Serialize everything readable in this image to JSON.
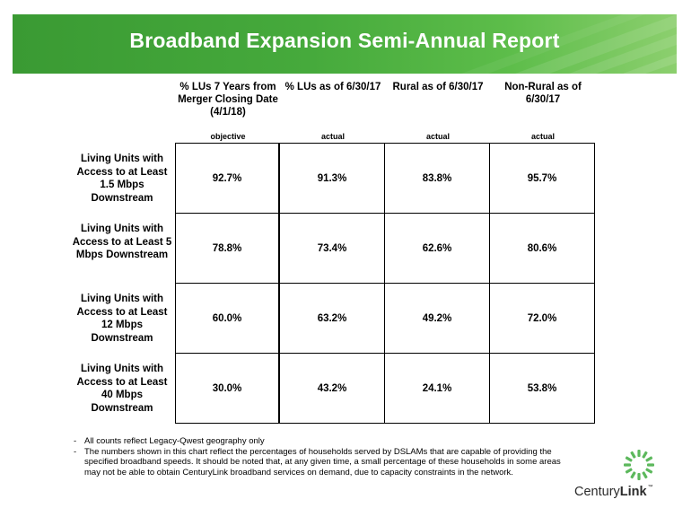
{
  "title": "Broadband Expansion Semi-Annual Report",
  "colors": {
    "banner_green": "#46aa3c",
    "logo_green": "#5cb85c"
  },
  "columns": [
    {
      "header": "% LUs 7 Years from Merger  Closing Date (4/1/18)",
      "sub": "objective"
    },
    {
      "header": "% LUs as of 6/30/17",
      "sub": "actual"
    },
    {
      "header": "Rural as of 6/30/17",
      "sub": "actual"
    },
    {
      "header": "Non-Rural as of 6/30/17",
      "sub": "actual"
    }
  ],
  "rows": [
    {
      "label": "Living Units with Access to at Least 1.5 Mbps Downstream",
      "values": [
        "92.7%",
        "91.3%",
        "83.8%",
        "95.7%"
      ]
    },
    {
      "label": "Living Units with Access to at Least 5 Mbps Downstream",
      "values": [
        "78.8%",
        "73.4%",
        "62.6%",
        "80.6%"
      ]
    },
    {
      "label": "Living Units with Access to at Least 12 Mbps Downstream",
      "values": [
        "60.0%",
        "63.2%",
        "49.2%",
        "72.0%"
      ]
    },
    {
      "label": "Living Units with Access to at Least 40 Mbps Downstream",
      "values": [
        "30.0%",
        "43.2%",
        "24.1%",
        "53.8%"
      ]
    }
  ],
  "notes": [
    "All counts reflect Legacy-Qwest geography only",
    "The numbers shown in this chart reflect the percentages of households served by DSLAMs that are capable of providing the specified broadband speeds.  It should be noted that, at any given time, a small percentage of these households in some areas may not be able to obtain CenturyLink broadband services on demand, due to capacity constraints in the network."
  ],
  "note_bullet": "-",
  "logo": {
    "prefix": "Century",
    "suffix": "Link",
    "tm": "™",
    "icon": "centurylink-burst-icon"
  }
}
